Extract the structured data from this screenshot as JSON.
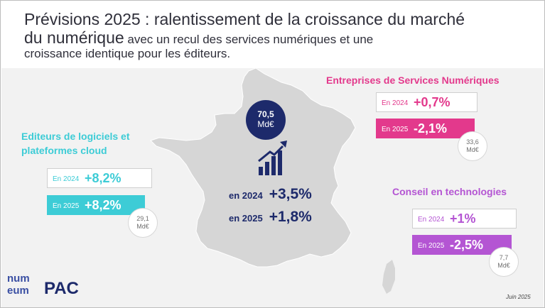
{
  "title": {
    "line1": "Prévisions 2025 : ralentissement de la croissance du marché",
    "line2_big": "du numérique",
    "line2_small": " avec un recul des services numériques et une",
    "line3": "croissance identique pour les éditeurs."
  },
  "central": {
    "total_value": "70,5",
    "total_unit": "Md€",
    "row_2024_label": "en 2024",
    "row_2024_value": "+3,5%",
    "row_2025_label": "en 2025",
    "row_2025_value": "+1,8%"
  },
  "editeurs": {
    "title_line1": "Editeurs de logiciels et",
    "title_line2": "plateformes cloud",
    "label_2024": "En 2024",
    "value_2024": "+8,2%",
    "label_2025": "En 2025",
    "value_2025": "+8,2%",
    "size_value": "29,1",
    "size_unit": "Md€",
    "color": "#3dccd6"
  },
  "esn": {
    "title": "Entreprises de Services Numériques",
    "label_2024": "En 2024",
    "value_2024": "+0,7%",
    "label_2025": "En 2025",
    "value_2025": "-2,1%",
    "size_value": "33,6",
    "size_unit": "Md€",
    "color": "#e3398c"
  },
  "conseil": {
    "title": "Conseil en technologies",
    "label_2024": "En 2024",
    "value_2024": "+1%",
    "label_2025": "En 2025",
    "value_2025": "-2,5%",
    "size_value": "7,7",
    "size_unit": "Md€",
    "color": "#b455d3"
  },
  "logos": {
    "numeum_line1": "num",
    "numeum_line2": "eum",
    "pac": "PAC"
  },
  "footer": {
    "date": "Juin 2025"
  },
  "icons": [
    "growth-chart-icon"
  ],
  "colors": {
    "navy": "#1d2a6b",
    "map_fill": "#d6d6d6"
  }
}
